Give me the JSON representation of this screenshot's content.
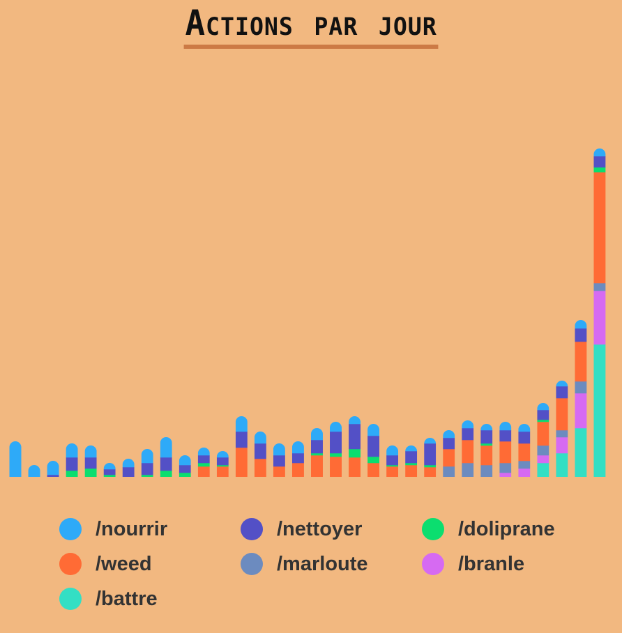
{
  "chart_data": {
    "type": "bar",
    "stacked": true,
    "title": "Actions par jour",
    "xlabel": "",
    "ylabel": "",
    "axes_visible": false,
    "grid": false,
    "legend_position": "bottom",
    "stack_order_bottom_to_top": [
      "/battre",
      "/branle",
      "/marloute",
      "/weed",
      "/doliprane",
      "/nettoyer",
      "/nourrir"
    ],
    "series": [
      {
        "name": "/nourrir",
        "color": "#2EAAF8",
        "values": [
          51,
          17,
          20,
          20,
          17,
          9,
          12,
          20,
          29,
          14,
          11,
          9,
          22,
          17,
          17,
          17,
          17,
          14,
          11,
          17,
          14,
          8,
          8,
          11,
          11,
          9,
          12,
          11,
          10,
          8,
          12,
          11
        ]
      },
      {
        "name": "/nettoyer",
        "color": "#5350C6",
        "values": [
          0,
          0,
          3,
          19,
          16,
          8,
          14,
          17,
          19,
          11,
          11,
          11,
          23,
          22,
          16,
          14,
          19,
          31,
          36,
          30,
          14,
          17,
          31,
          16,
          17,
          19,
          16,
          17,
          14,
          17,
          19,
          16
        ]
      },
      {
        "name": "/doliprane",
        "color": "#0BDE6F",
        "values": [
          0,
          0,
          0,
          9,
          12,
          3,
          0,
          3,
          9,
          6,
          5,
          2,
          0,
          0,
          0,
          0,
          3,
          5,
          12,
          9,
          2,
          3,
          3,
          0,
          0,
          3,
          0,
          0,
          3,
          0,
          0,
          7
        ]
      },
      {
        "name": "/weed",
        "color": "#FF6B35",
        "values": [
          0,
          0,
          0,
          0,
          0,
          0,
          0,
          0,
          0,
          0,
          15,
          15,
          42,
          26,
          15,
          20,
          31,
          29,
          28,
          20,
          15,
          17,
          14,
          25,
          33,
          28,
          31,
          25,
          34,
          46,
          57,
          159
        ]
      },
      {
        "name": "/marloute",
        "color": "#6C8BBF",
        "values": [
          0,
          0,
          0,
          0,
          0,
          0,
          0,
          0,
          0,
          0,
          0,
          0,
          0,
          0,
          0,
          0,
          0,
          0,
          0,
          0,
          0,
          0,
          0,
          15,
          20,
          17,
          14,
          11,
          14,
          10,
          17,
          11
        ]
      },
      {
        "name": "/branle",
        "color": "#D66AF2",
        "values": [
          0,
          0,
          0,
          0,
          0,
          0,
          0,
          0,
          0,
          0,
          0,
          0,
          0,
          0,
          0,
          0,
          0,
          0,
          0,
          0,
          0,
          0,
          0,
          0,
          0,
          0,
          6,
          12,
          11,
          23,
          50,
          77
        ]
      },
      {
        "name": "/battre",
        "color": "#33DFC4",
        "values": [
          0,
          0,
          0,
          0,
          0,
          0,
          0,
          0,
          0,
          0,
          0,
          0,
          0,
          0,
          0,
          0,
          0,
          0,
          0,
          0,
          0,
          0,
          0,
          0,
          0,
          0,
          0,
          0,
          20,
          34,
          70,
          190
        ]
      }
    ]
  },
  "legend": [
    "/nourrir",
    "/nettoyer",
    "/doliprane",
    "/weed",
    "/marloute",
    "/branle",
    "/battre"
  ],
  "colors": {
    "background": "#F2B880",
    "title_underline": "#CC7A45"
  }
}
